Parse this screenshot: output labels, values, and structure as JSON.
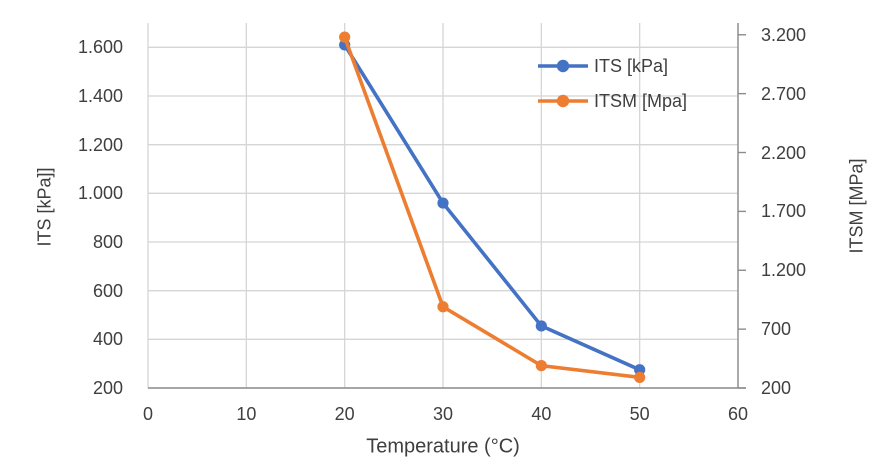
{
  "chart_data": {
    "type": "line",
    "x": [
      20,
      30,
      40,
      50
    ],
    "series": [
      {
        "name": "ITS [kPa]",
        "axis": "left",
        "color": "#4472C4",
        "values": [
          1610,
          960,
          455,
          275
        ]
      },
      {
        "name": "ITSM [Mpa]",
        "axis": "right",
        "color": "#ED7D31",
        "values": [
          3180,
          890,
          390,
          290
        ]
      }
    ],
    "xlabel": "Temperature (°C)",
    "ylabel_left": "ITS [kPa]]",
    "ylabel_right": "ITSM [MPa]",
    "x_axis": {
      "min": 0,
      "max": 60,
      "tick_values": [
        0,
        10,
        20,
        30,
        40,
        50,
        60
      ],
      "tick_labels": [
        "0",
        "10",
        "20",
        "30",
        "40",
        "50",
        "60"
      ]
    },
    "left_axis": {
      "min": 200,
      "max": 1700,
      "tick_values": [
        200,
        400,
        600,
        800,
        1000,
        1200,
        1400,
        1600
      ],
      "tick_labels": [
        "200",
        "400",
        "600",
        "800",
        "1.000",
        "1.200",
        "1.400",
        "1.600"
      ]
    },
    "right_axis": {
      "min": 200,
      "max": 3300,
      "tick_values": [
        200,
        700,
        1200,
        1700,
        2200,
        2700,
        3200
      ],
      "tick_labels": [
        "200",
        "700",
        "1.200",
        "1.700",
        "2.200",
        "2.700",
        "3.200"
      ]
    },
    "legend": {
      "position": "inside-top-right"
    },
    "grid": true,
    "colors": {
      "gridline": "#D5D5D5",
      "axis_line": "#8C8C8C",
      "text": "#3F3F3F",
      "background": "#FFFFFF"
    }
  }
}
